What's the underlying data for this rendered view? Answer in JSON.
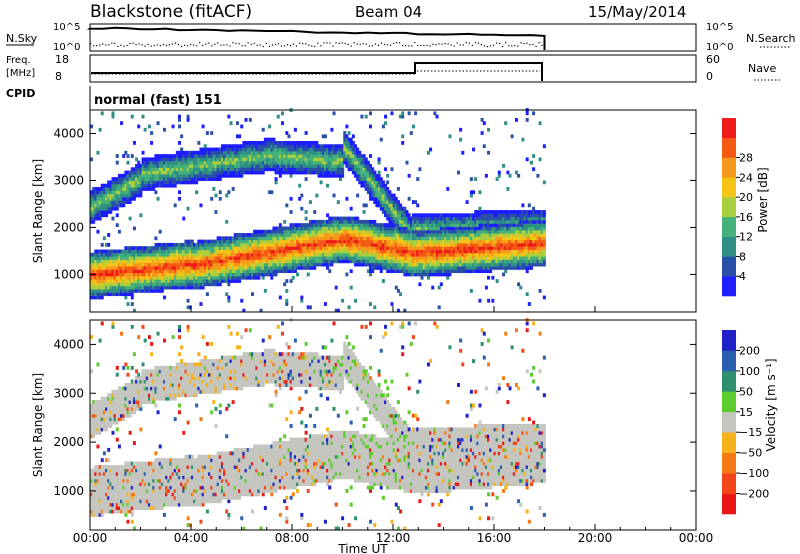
{
  "header": {
    "station": "Blackstone (fitACF)",
    "beam": "Beam 04",
    "date": "15/May/2014"
  },
  "nsky_panel": {
    "left_label": "N.Sky",
    "right_label": "N.Search",
    "left_ticks": [
      "10^5",
      "10^0"
    ],
    "right_ticks": [
      "10^5",
      "10^0"
    ]
  },
  "freq_panel": {
    "left_label_lines": [
      "Freq.",
      "[MHz]"
    ],
    "right_label": "Nave",
    "left_ticks": [
      "18",
      "8"
    ],
    "right_ticks": [
      "60",
      "0"
    ]
  },
  "cpid_panel": {
    "label": "CPID",
    "value": "normal (fast) 151"
  },
  "chart_data": [
    {
      "type": "heatmap",
      "name": "power",
      "ylabel": "Slant Range [km]",
      "yticks": [
        1000,
        2000,
        3000,
        4000
      ],
      "ylim": [
        200,
        4500
      ],
      "xlim": [
        0,
        24
      ],
      "data_end_hour": 18,
      "colorbar": {
        "label": "Power [dB]",
        "ticks": [
          4,
          8,
          12,
          16,
          20,
          24,
          28
        ],
        "colors": [
          "#1d1dff",
          "#2a4fa8",
          "#2f8f85",
          "#44b07a",
          "#a9cf3e",
          "#f5c418",
          "#f6991a",
          "#f45a14",
          "#ee1b1b"
        ]
      }
    },
    {
      "type": "heatmap",
      "name": "velocity",
      "ylabel": "Slant Range [km]",
      "yticks": [
        1000,
        2000,
        3000,
        4000
      ],
      "ylim": [
        200,
        4500
      ],
      "xlim": [
        0,
        24
      ],
      "xticks": [
        "00:00",
        "04:00",
        "08:00",
        "12:00",
        "16:00",
        "20:00",
        "00:00"
      ],
      "xlabel": "Time UT",
      "data_end_hour": 18,
      "colorbar": {
        "label": "Velocity [m s⁻¹]",
        "ticks": [
          "200",
          "100",
          "50",
          "15",
          "−15",
          "−50",
          "−100",
          "−200"
        ],
        "colors": [
          "#2020c8",
          "#2a5fb0",
          "#2f8f6e",
          "#5ccc2e",
          "#c6c6c0",
          "#f6b21a",
          "#f67a14",
          "#f2461a",
          "#e81818"
        ]
      }
    }
  ],
  "colors": {
    "ground_scatter": "#c6c6c0",
    "text": "#000000"
  }
}
